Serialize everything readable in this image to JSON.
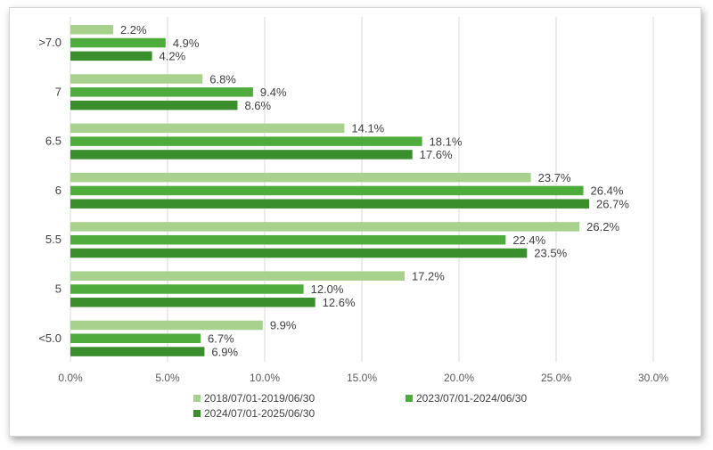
{
  "chart_data": {
    "type": "bar",
    "orientation": "horizontal",
    "title": "",
    "xlabel": "",
    "ylabel": "",
    "xlim": [
      0,
      30
    ],
    "x_ticks": [
      "0.0%",
      "5.0%",
      "10.0%",
      "15.0%",
      "20.0%",
      "25.0%",
      "30.0%"
    ],
    "grid": true,
    "legend_position": "bottom",
    "categories": [
      ">7.0",
      "7",
      "6.5",
      "6",
      "5.5",
      "5",
      "<5.0"
    ],
    "series": [
      {
        "name": "2018/07/01-2019/06/30",
        "color": "#a9d18e",
        "values": [
          2.2,
          6.8,
          14.1,
          23.7,
          26.2,
          17.2,
          9.9
        ],
        "labels": [
          "2.2%",
          "6.8%",
          "14.1%",
          "23.7%",
          "26.2%",
          "17.2%",
          "9.9%"
        ]
      },
      {
        "name": "2023/07/01-2024/06/30",
        "color": "#4eac3c",
        "values": [
          4.9,
          9.4,
          18.1,
          26.4,
          22.4,
          12.0,
          6.7
        ],
        "labels": [
          "4.9%",
          "9.4%",
          "18.1%",
          "26.4%",
          "22.4%",
          "12.0%",
          "6.7%"
        ]
      },
      {
        "name": "2024/07/01-2025/06/30",
        "color": "#3a8f2c",
        "values": [
          4.2,
          8.6,
          17.6,
          26.7,
          23.5,
          12.6,
          6.9
        ],
        "labels": [
          "4.2%",
          "8.6%",
          "17.6%",
          "26.7%",
          "23.5%",
          "12.6%",
          "6.9%"
        ]
      }
    ]
  }
}
